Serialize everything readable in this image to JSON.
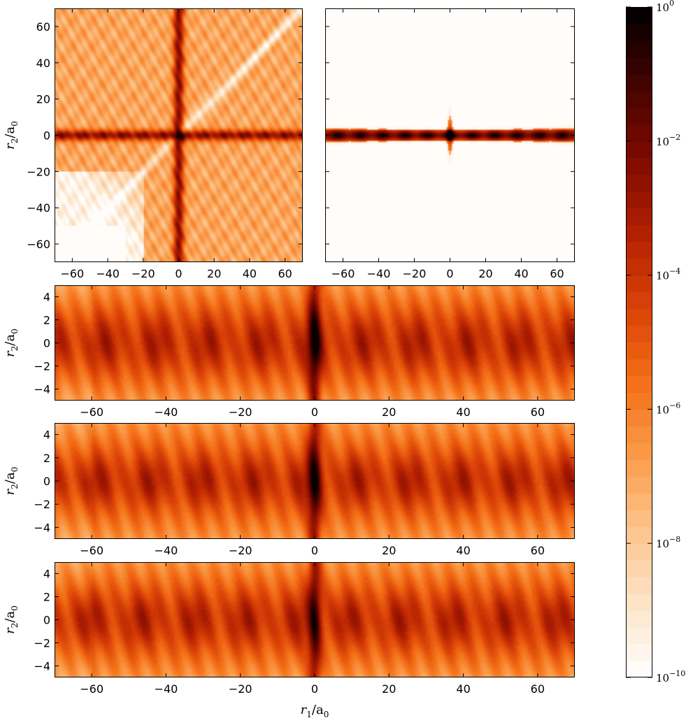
{
  "colors": {
    "colormap": [
      "#ffffff",
      "#fde4c8",
      "#fcc48c",
      "#fb9a48",
      "#f36d16",
      "#d94107",
      "#b01f02",
      "#7d0a00",
      "#420300",
      "#000000"
    ],
    "frame": "#000000"
  },
  "chart_data": [
    {
      "type": "heatmap",
      "name": "panel-top-left",
      "xlim": [
        -70,
        70
      ],
      "ylim": [
        -70,
        70
      ],
      "xticks": [
        -60,
        -40,
        -20,
        0,
        20,
        40,
        60
      ],
      "yticks": [
        -60,
        -40,
        -20,
        0,
        20,
        40,
        60
      ],
      "xtick_labels": [
        "−60",
        "−40",
        "−20",
        "0",
        "20",
        "40",
        "60"
      ],
      "ytick_labels": [
        "−60",
        "−40",
        "−20",
        "0",
        "20",
        "40",
        "60"
      ],
      "ylabel": "r_2/a_0",
      "show_ytick_labels": true
    },
    {
      "type": "heatmap",
      "name": "panel-top-right",
      "xlim": [
        -70,
        70
      ],
      "ylim": [
        -70,
        70
      ],
      "xticks": [
        -60,
        -40,
        -20,
        0,
        20,
        40,
        60
      ],
      "yticks": [
        -60,
        -40,
        -20,
        0,
        20,
        40,
        60
      ],
      "xtick_labels": [
        "−60",
        "−40",
        "−20",
        "0",
        "20",
        "40",
        "60"
      ],
      "show_ytick_labels": false
    },
    {
      "type": "heatmap",
      "name": "panel-strip-1",
      "xlim": [
        -70,
        70
      ],
      "ylim": [
        -5,
        5
      ],
      "xticks": [
        -60,
        -40,
        -20,
        0,
        20,
        40,
        60
      ],
      "yticks": [
        -4,
        -2,
        0,
        2,
        4
      ],
      "xtick_labels": [
        "−60",
        "−40",
        "−20",
        "0",
        "20",
        "40",
        "60"
      ],
      "ytick_labels": [
        "−4",
        "−2",
        "0",
        "2",
        "4"
      ],
      "ylabel": "r_2/a_0"
    },
    {
      "type": "heatmap",
      "name": "panel-strip-2",
      "xlim": [
        -70,
        70
      ],
      "ylim": [
        -5,
        5
      ],
      "xticks": [
        -60,
        -40,
        -20,
        0,
        20,
        40,
        60
      ],
      "yticks": [
        -4,
        -2,
        0,
        2,
        4
      ],
      "xtick_labels": [
        "−60",
        "−40",
        "−20",
        "0",
        "20",
        "40",
        "60"
      ],
      "ytick_labels": [
        "−4",
        "−2",
        "0",
        "2",
        "4"
      ],
      "ylabel": "r_2/a_0"
    },
    {
      "type": "heatmap",
      "name": "panel-strip-3",
      "xlim": [
        -70,
        70
      ],
      "ylim": [
        -5,
        5
      ],
      "xticks": [
        -60,
        -40,
        -20,
        0,
        20,
        40,
        60
      ],
      "yticks": [
        -4,
        -2,
        0,
        2,
        4
      ],
      "xtick_labels": [
        "−60",
        "−40",
        "−20",
        "0",
        "20",
        "40",
        "60"
      ],
      "ytick_labels": [
        "−4",
        "−2",
        "0",
        "2",
        "4"
      ],
      "ylabel": "r_2/a_0",
      "xlabel": "r_1/a_0"
    }
  ],
  "colorbar": {
    "scale": "log",
    "range": [
      1e-10,
      1
    ],
    "levels": 40,
    "tick_labels": [
      {
        "base": "10",
        "exp": "0",
        "value": 1
      },
      {
        "base": "10",
        "exp": "−2",
        "value": 0.01
      },
      {
        "base": "10",
        "exp": "−4",
        "value": 0.0001
      },
      {
        "base": "10",
        "exp": "−6",
        "value": 1e-06
      },
      {
        "base": "10",
        "exp": "−8",
        "value": 1e-08
      },
      {
        "base": "10",
        "exp": "−10",
        "value": 1e-10
      }
    ]
  }
}
